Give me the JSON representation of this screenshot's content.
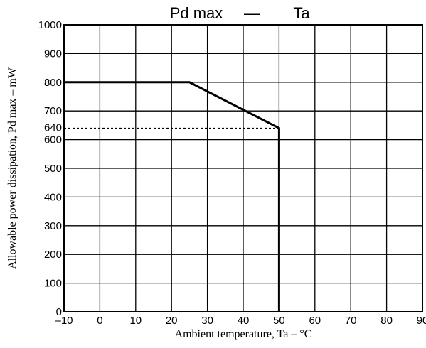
{
  "chart_data": {
    "type": "line",
    "title_left": "Pd max",
    "title_sep": "—",
    "title_right": "Ta",
    "xlabel": "Ambient temperature, Ta – °C",
    "ylabel": "Allowable power dissipation, Pd max – mW",
    "xlim": [
      -10,
      90
    ],
    "ylim": [
      0,
      1000
    ],
    "x_ticks": [
      -10,
      0,
      10,
      20,
      30,
      40,
      50,
      60,
      70,
      80,
      90
    ],
    "x_tick_labels": [
      "–10",
      "0",
      "10",
      "20",
      "30",
      "40",
      "50",
      "60",
      "70",
      "80",
      "90"
    ],
    "y_ticks": [
      0,
      100,
      200,
      300,
      400,
      500,
      600,
      700,
      800,
      900,
      1000
    ],
    "y_tick_labels": [
      "0",
      "100",
      "200",
      "300",
      "400",
      "500",
      "600",
      "700",
      "800",
      "900",
      "1000"
    ],
    "extra_y_tick": {
      "value": 640,
      "label": "640"
    },
    "grid": true,
    "series": [
      {
        "x": [
          -10,
          25,
          50,
          50
        ],
        "y": [
          800,
          800,
          640,
          0
        ]
      }
    ],
    "reference_lines": [
      {
        "style": "dashed",
        "y": 640,
        "x_from": -10,
        "x_to": 50
      }
    ]
  }
}
